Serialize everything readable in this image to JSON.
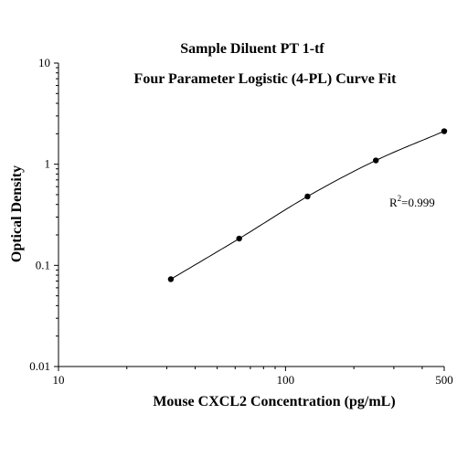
{
  "chart_data": {
    "type": "scatter",
    "title": "Sample Diluent PT 1-tf",
    "subtitle": "Four Parameter Logistic (4-PL) Curve Fit",
    "xlabel": "Mouse CXCL2 Concentration (pg/mL)",
    "ylabel": "Optical Density",
    "xscale": "log",
    "yscale": "log",
    "xlim": [
      10,
      500
    ],
    "ylim": [
      0.01,
      10
    ],
    "xticks": [
      10,
      100,
      500
    ],
    "xtick_labels": [
      "10",
      "100",
      "500"
    ],
    "yticks": [
      0.01,
      0.1,
      1,
      10
    ],
    "ytick_labels": [
      "0.01",
      "0.1",
      "1",
      "10"
    ],
    "grid": false,
    "series": [
      {
        "points": [
          {
            "x": 31.25,
            "y": 0.073
          },
          {
            "x": 62.5,
            "y": 0.184
          },
          {
            "x": 125,
            "y": 0.48
          },
          {
            "x": 250,
            "y": 1.09
          },
          {
            "x": 500,
            "y": 2.12
          }
        ],
        "fit": "4-PL curve"
      }
    ],
    "annotation": {
      "base": "R",
      "sup": "2",
      "text": "=0.999"
    },
    "colors": {
      "points": "#000000",
      "line": "#000000",
      "axes": "#000000"
    }
  }
}
